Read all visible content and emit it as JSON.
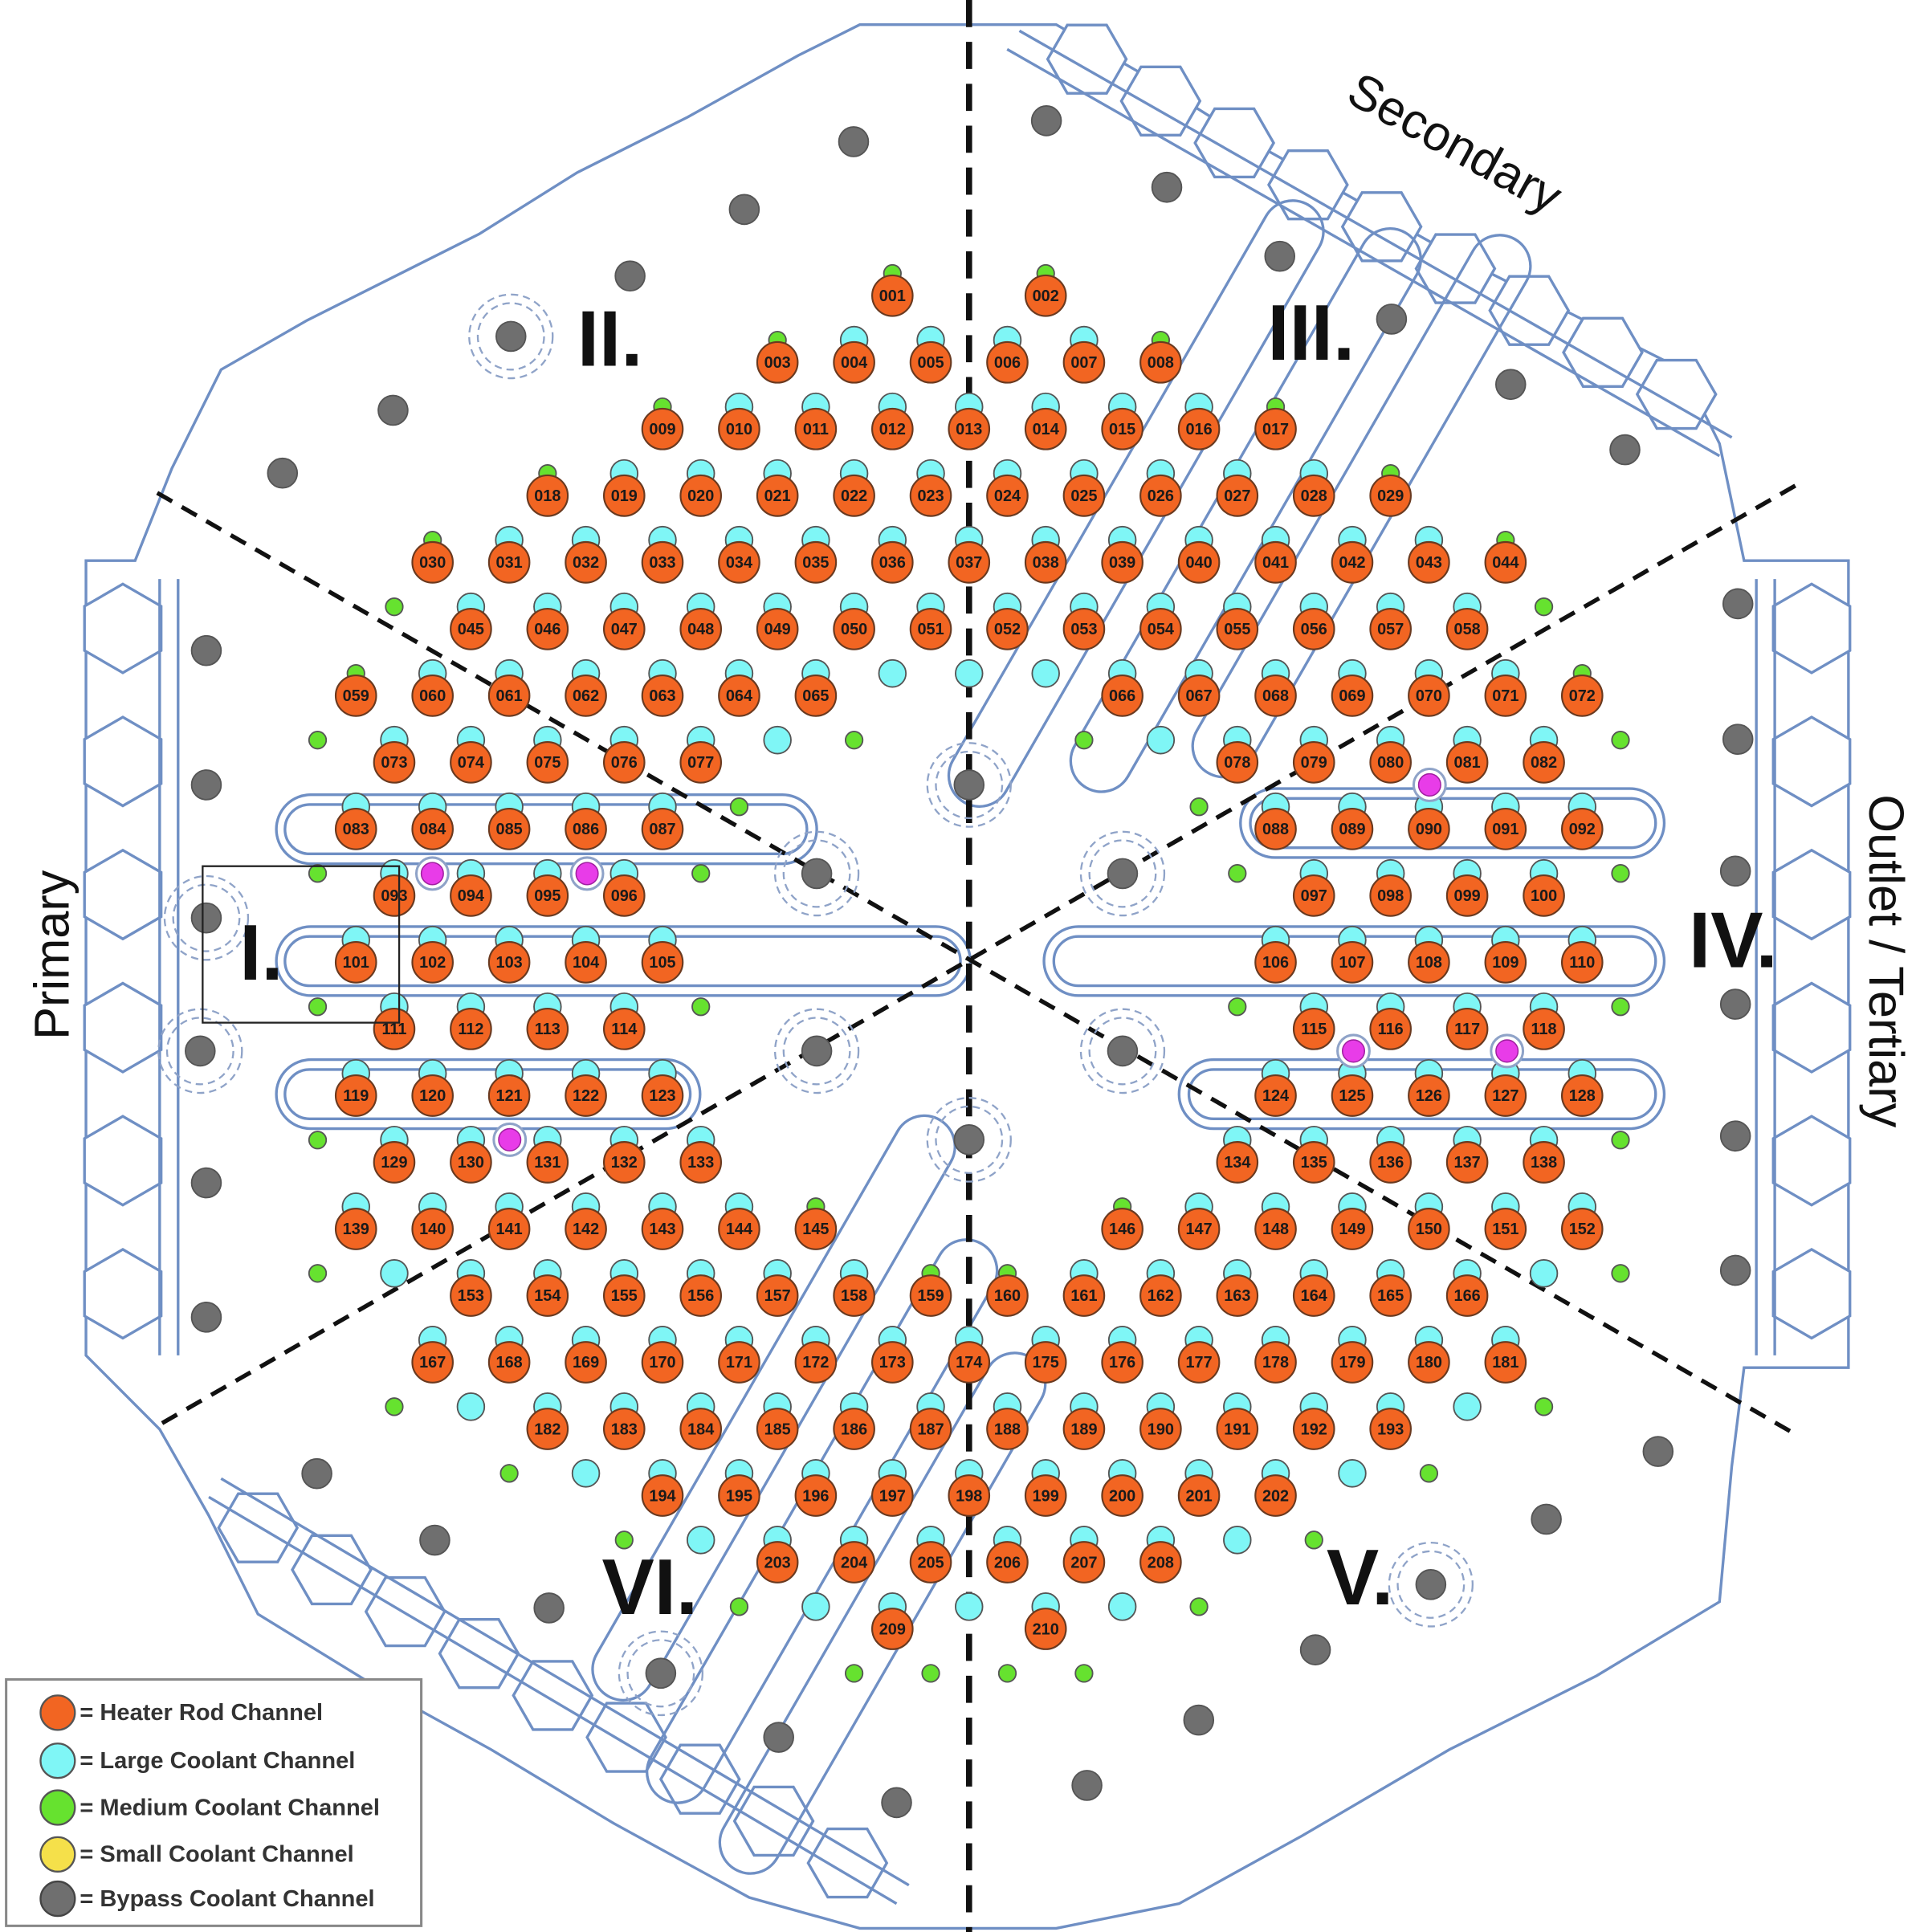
{
  "labels": {
    "secondary": "Secondary",
    "primary": "Primary",
    "outlet": "Outlet / Tertiary"
  },
  "sectors": [
    "I.",
    "II.",
    "III.",
    "IV.",
    "V.",
    "VI."
  ],
  "heater_rows": [
    [
      "001",
      "002"
    ],
    [
      "003",
      "004",
      "005",
      "006",
      "007",
      "008"
    ],
    [
      "009",
      "010",
      "011",
      "012",
      "013",
      "014",
      "015",
      "016",
      "017"
    ],
    [
      "018",
      "019",
      "020",
      "021",
      "022",
      "023",
      "024",
      "025",
      "026",
      "027",
      "028",
      "029"
    ],
    [
      "030",
      "031",
      "032",
      "033",
      "034",
      "035",
      "036",
      "037",
      "038",
      "039",
      "040",
      "041",
      "042",
      "043",
      "044"
    ],
    [
      "045",
      "046",
      "047",
      "048",
      "049",
      "050",
      "051",
      "052",
      "053",
      "054",
      "055",
      "056",
      "057",
      "058"
    ],
    [
      "059",
      "060",
      "061",
      "062",
      "063",
      "064",
      "065",
      "066",
      "067",
      "068",
      "069",
      "070",
      "071",
      "072"
    ],
    [
      "073",
      "074",
      "075",
      "076",
      "077",
      "078",
      "079",
      "080",
      "081",
      "082"
    ],
    [
      "083",
      "084",
      "085",
      "086",
      "087",
      "088",
      "089",
      "090",
      "091",
      "092"
    ],
    [
      "093",
      "094",
      "095",
      "096",
      "097",
      "098",
      "099",
      "100"
    ],
    [
      "101",
      "102",
      "103",
      "104",
      "105",
      "106",
      "107",
      "108",
      "109",
      "110"
    ],
    [
      "111",
      "112",
      "113",
      "114",
      "115",
      "116",
      "117",
      "118"
    ],
    [
      "119",
      "120",
      "121",
      "122",
      "123",
      "124",
      "125",
      "126",
      "127",
      "128"
    ],
    [
      "129",
      "130",
      "131",
      "132",
      "133",
      "134",
      "135",
      "136",
      "137",
      "138"
    ],
    [
      "139",
      "140",
      "141",
      "142",
      "143",
      "144",
      "145",
      "146",
      "147",
      "148",
      "149",
      "150",
      "151",
      "152"
    ],
    [
      "153",
      "154",
      "155",
      "156",
      "157",
      "158",
      "159",
      "160",
      "161",
      "162",
      "163",
      "164",
      "165",
      "166"
    ],
    [
      "167",
      "168",
      "169",
      "170",
      "171",
      "172",
      "173",
      "174",
      "175",
      "176",
      "177",
      "178",
      "179",
      "180",
      "181"
    ],
    [
      "182",
      "183",
      "184",
      "185",
      "186",
      "187",
      "188",
      "189",
      "190",
      "191",
      "192",
      "193"
    ],
    [
      "194",
      "195",
      "196",
      "197",
      "198",
      "199",
      "200",
      "201",
      "202"
    ],
    [
      "203",
      "204",
      "205",
      "206",
      "207",
      "208"
    ],
    [
      "209",
      "210"
    ]
  ],
  "legend": [
    "= Heater Rod Channel",
    "= Large Coolant Channel",
    "= Medium Coolant Channel",
    "= Small Coolant Channel",
    "= Bypass Coolant Channel"
  ]
}
